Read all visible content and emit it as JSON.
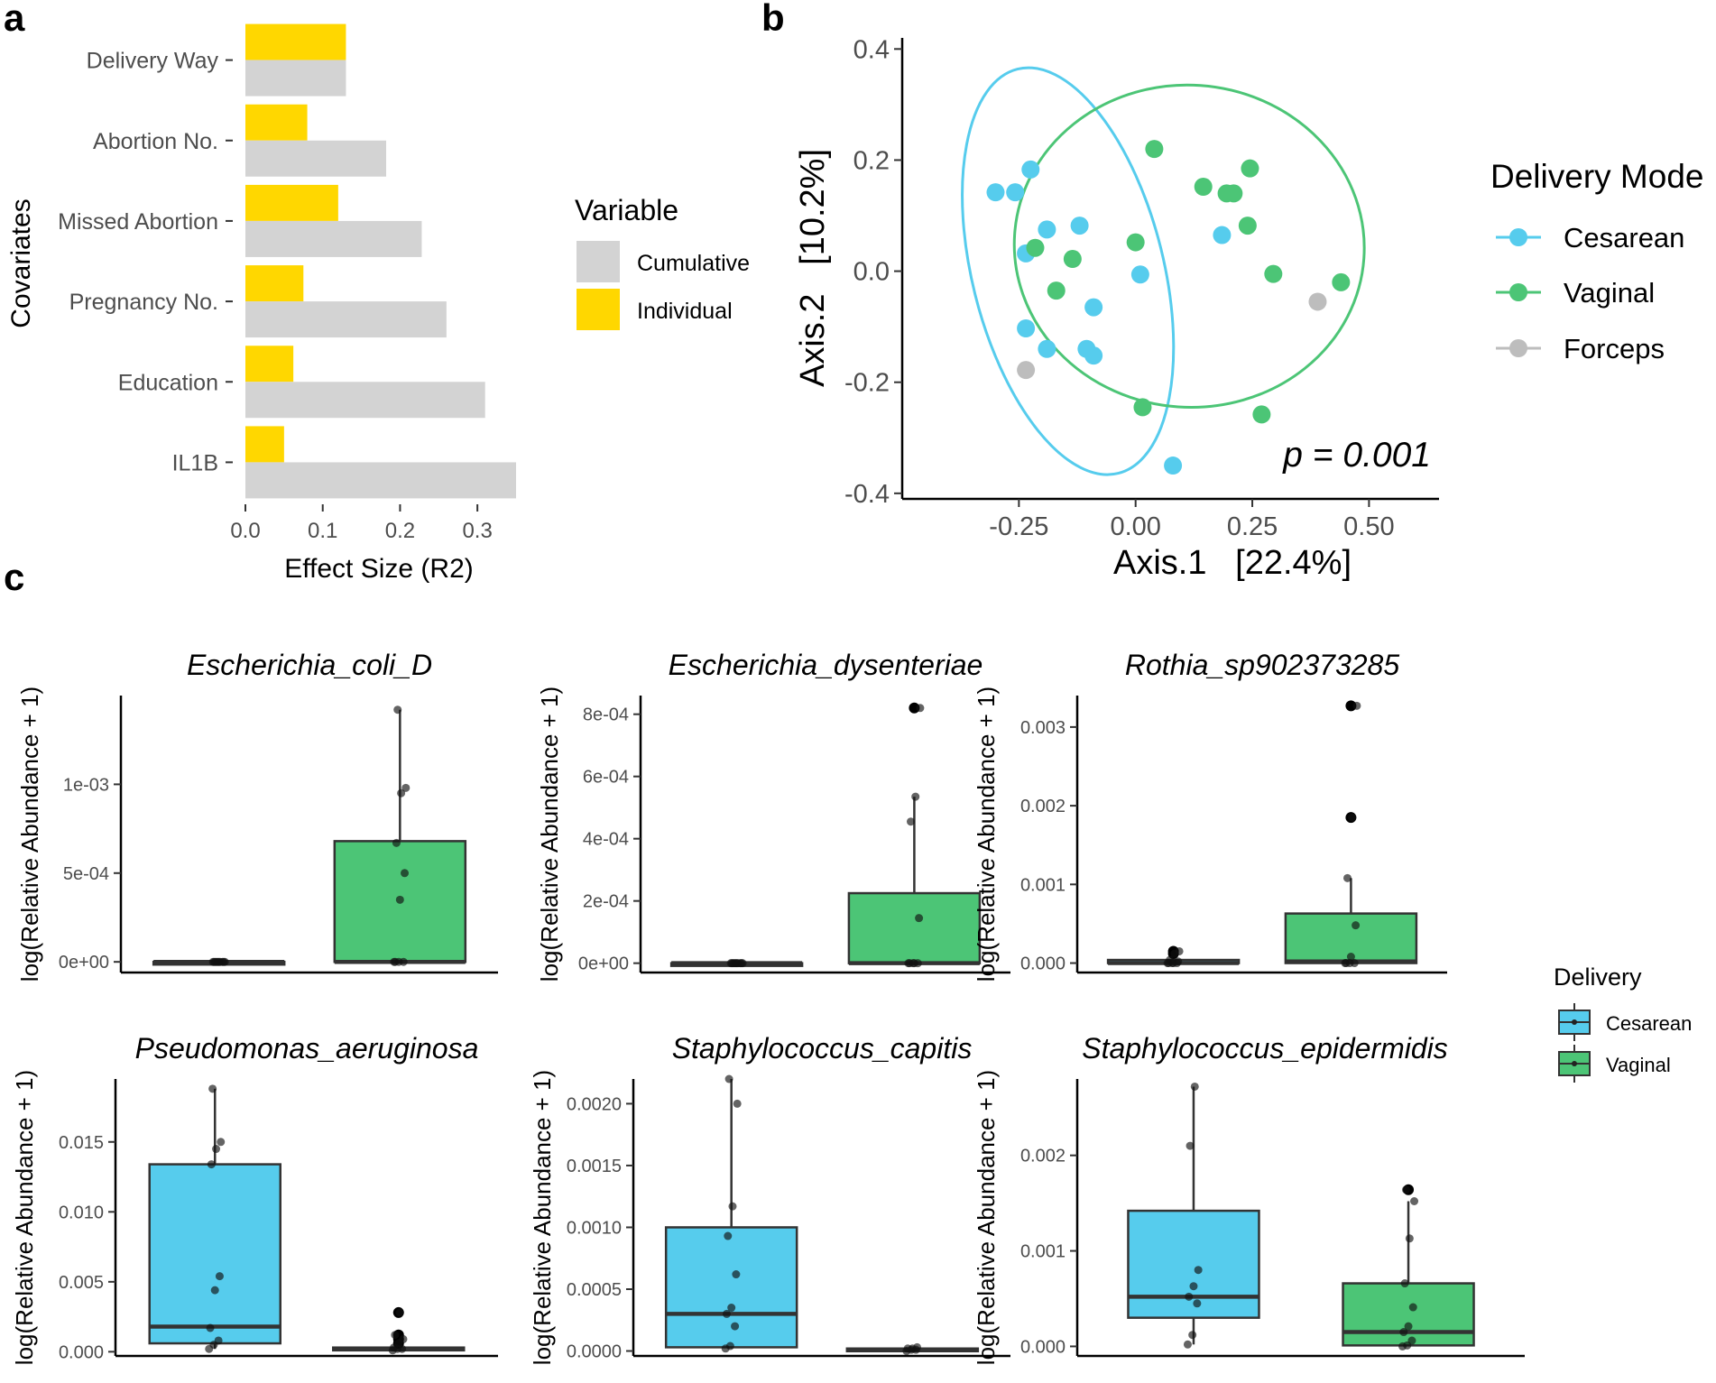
{
  "panel_labels": [
    "a",
    "b",
    "c"
  ],
  "colors": {
    "cesarean": "#56CCED",
    "vaginal": "#4CC576",
    "forceps": "#BDBDBD",
    "cumulative": "#D3D3D3",
    "individual": "#FFD700",
    "axis": "#000000",
    "tick_text": "#4D4D4D"
  },
  "chart_data": [
    {
      "id": "a",
      "type": "bar",
      "orientation": "horizontal",
      "categories": [
        "Delivery Way",
        "Abortion No.",
        "Missed Abortion",
        "Pregnancy No.",
        "Education",
        "IL1B"
      ],
      "series": [
        {
          "name": "Individual",
          "values": [
            0.13,
            0.08,
            0.12,
            0.075,
            0.062,
            0.05
          ]
        },
        {
          "name": "Cumulative",
          "values": [
            0.13,
            0.182,
            0.228,
            0.26,
            0.31,
            0.35
          ]
        }
      ],
      "xlabel": "Effect Size (R2)",
      "ylabel": "Covariates",
      "xlim": [
        0,
        0.35
      ],
      "xticks": [
        0.0,
        0.1,
        0.2,
        0.3
      ],
      "xtick_labels": [
        "0.0",
        "0.1",
        "0.2",
        "0.3"
      ],
      "legend": {
        "title": "Variable",
        "items": [
          "Cumulative",
          "Individual"
        ],
        "position": "right"
      }
    },
    {
      "id": "b",
      "type": "scatter",
      "xlabel": "Axis.1   [22.4%]",
      "ylabel": "Axis.2   [10.2%]",
      "xlim": [
        -0.5,
        0.65
      ],
      "ylim": [
        -0.41,
        0.42
      ],
      "xticks": [
        -0.25,
        0.0,
        0.25,
        0.5
      ],
      "xtick_labels": [
        "-0.25",
        "0.00",
        "0.25",
        "0.50"
      ],
      "yticks": [
        0.4,
        0.2,
        0.0,
        -0.2,
        -0.4
      ],
      "ytick_labels": [
        "0.4",
        "0.2",
        "0.0",
        "-0.2",
        "-0.4"
      ],
      "annotation": "p = 0.001",
      "legend": {
        "title": "Delivery Mode",
        "items": [
          "Cesarean",
          "Vaginal",
          "Forceps"
        ],
        "position": "right"
      },
      "series": [
        {
          "name": "Cesarean",
          "points": [
            [
              -0.3,
              0.142
            ],
            [
              -0.258,
              0.142
            ],
            [
              -0.225,
              0.183
            ],
            [
              -0.19,
              0.075
            ],
            [
              -0.12,
              0.082
            ],
            [
              -0.235,
              0.032
            ],
            [
              0.01,
              -0.006
            ],
            [
              -0.09,
              -0.065
            ],
            [
              -0.235,
              -0.103
            ],
            [
              -0.19,
              -0.14
            ],
            [
              -0.105,
              -0.14
            ],
            [
              -0.09,
              -0.152
            ],
            [
              0.08,
              -0.35
            ],
            [
              0.185,
              0.065
            ]
          ]
        },
        {
          "name": "Vaginal",
          "points": [
            [
              0.04,
              0.22
            ],
            [
              -0.215,
              0.042
            ],
            [
              -0.135,
              0.022
            ],
            [
              -0.17,
              -0.035
            ],
            [
              0.0,
              0.052
            ],
            [
              0.145,
              0.152
            ],
            [
              0.195,
              0.14
            ],
            [
              0.21,
              0.14
            ],
            [
              0.245,
              0.185
            ],
            [
              0.24,
              0.082
            ],
            [
              0.295,
              -0.005
            ],
            [
              0.44,
              -0.02
            ],
            [
              0.015,
              -0.245
            ],
            [
              0.27,
              -0.258
            ]
          ]
        },
        {
          "name": "Forceps",
          "points": [
            [
              -0.235,
              -0.178
            ],
            [
              0.39,
              -0.055
            ]
          ]
        }
      ],
      "ellipses": [
        {
          "group": "Cesarean",
          "center": [
            -0.145,
            0.0
          ],
          "radii": [
            0.205,
            0.375
          ],
          "rotation_deg": -14
        },
        {
          "group": "Vaginal",
          "center": [
            0.115,
            0.045
          ],
          "radii": [
            0.375,
            0.29
          ],
          "rotation_deg": 4
        }
      ]
    },
    {
      "id": "c",
      "type": "box",
      "ylabel": "log(Relative Abundance + 1)",
      "legend": {
        "title": "Delivery",
        "items": [
          "Cesarean",
          "Vaginal"
        ],
        "position": "right"
      },
      "panels": [
        {
          "title": "Escherichia_coli_D",
          "ylim": [
            -6e-05,
            0.0015
          ],
          "yticks": [
            0,
            0.0005,
            0.001
          ],
          "ytick_labels": [
            "0e+00",
            "5e-04",
            "1e-03"
          ],
          "boxes": [
            {
              "group": "Cesarean",
              "q1": 0,
              "median": 0,
              "q3": 0,
              "whisker_low": 0,
              "whisker_high": 0,
              "outliers": [],
              "points": [
                0,
                0,
                0,
                0,
                0,
                0,
                0,
                0,
                0,
                0
              ]
            },
            {
              "group": "Vaginal",
              "q1": 0,
              "median": 0,
              "q3": 0.00068,
              "whisker_low": 0,
              "whisker_high": 0.00142,
              "outliers": [],
              "points": [
                0,
                0,
                0,
                0,
                0.00035,
                0.0005,
                0.00067,
                0.00095,
                0.00098,
                0.00142
              ]
            }
          ]
        },
        {
          "title": "Escherichia_dysenteriae",
          "ylim": [
            -3e-05,
            0.00086
          ],
          "yticks": [
            0,
            0.0002,
            0.0004,
            0.0006,
            0.0008
          ],
          "ytick_labels": [
            "0e+00",
            "2e-04",
            "4e-04",
            "6e-04",
            "8e-04"
          ],
          "boxes": [
            {
              "group": "Cesarean",
              "q1": 0,
              "median": 0,
              "q3": 0,
              "whisker_low": 0,
              "whisker_high": 0,
              "outliers": [],
              "points": [
                0,
                0,
                0,
                0,
                0,
                0,
                0,
                0,
                0,
                0
              ]
            },
            {
              "group": "Vaginal",
              "q1": 0,
              "median": 0,
              "q3": 0.000225,
              "whisker_low": 0,
              "whisker_high": 0.000535,
              "outliers": [
                0.00082
              ],
              "points": [
                0,
                0,
                0,
                0,
                0,
                0.000145,
                0.000455,
                0.000535,
                0.00082
              ]
            }
          ]
        },
        {
          "title": "Rothia_sp902373285",
          "ylim": [
            -0.00012,
            0.0034
          ],
          "yticks": [
            0,
            0.001,
            0.002,
            0.003
          ],
          "ytick_labels": [
            "0.000",
            "0.001",
            "0.002",
            "0.003"
          ],
          "boxes": [
            {
              "group": "Cesarean",
              "q1": 0,
              "median": 0,
              "q3": 4e-05,
              "whisker_low": 0,
              "whisker_high": 4e-05,
              "outliers": [
                0.00012,
                0.00015
              ],
              "points": [
                0,
                0,
                0,
                0,
                0,
                2e-05,
                4e-05,
                0.00012,
                0.00015
              ]
            },
            {
              "group": "Vaginal",
              "q1": 0,
              "median": 2e-05,
              "q3": 0.00063,
              "whisker_low": 0,
              "whisker_high": 0.00108,
              "outliers": [
                0.00185,
                0.00327
              ],
              "points": [
                0,
                0,
                0,
                0,
                8e-05,
                0.00048,
                0.00108,
                0.00185,
                0.00327
              ]
            }
          ]
        },
        {
          "title": "Pseudomonas_aeruginosa",
          "ylim": [
            -0.0003,
            0.0195
          ],
          "yticks": [
            0,
            0.005,
            0.01,
            0.015
          ],
          "ytick_labels": [
            "0.000",
            "0.005",
            "0.010",
            "0.015"
          ],
          "boxes": [
            {
              "group": "Cesarean",
              "q1": 0.0006,
              "median": 0.0018,
              "q3": 0.0134,
              "whisker_low": 0.0002,
              "whisker_high": 0.0188,
              "outliers": [],
              "points": [
                0.0002,
                0.0005,
                0.0008,
                0.0017,
                0.0044,
                0.0054,
                0.0134,
                0.0145,
                0.015,
                0.0188
              ]
            },
            {
              "group": "Vaginal",
              "q1": 0.0001,
              "median": 0.0002,
              "q3": 0.0003,
              "whisker_low": 0.0001,
              "whisker_high": 0.0003,
              "outliers": [
                0.0006,
                0.0009,
                0.0012,
                0.0028
              ],
              "points": [
                0.0001,
                0.0002,
                0.0002,
                0.0003,
                0.0006,
                0.0009,
                0.0012,
                0.0028
              ]
            }
          ]
        },
        {
          "title": "Staphylococcus_capitis",
          "ylim": [
            -4e-05,
            0.0022
          ],
          "yticks": [
            0,
            0.0005,
            0.001,
            0.0015,
            0.002
          ],
          "ytick_labels": [
            "0.0000",
            "0.0005",
            "0.0010",
            "0.0015",
            "0.0020"
          ],
          "boxes": [
            {
              "group": "Cesarean",
              "q1": 3e-05,
              "median": 0.0003,
              "q3": 0.001,
              "whisker_low": 2e-05,
              "whisker_high": 0.0022,
              "outliers": [],
              "points": [
                2e-05,
                4e-05,
                0.0002,
                0.0003,
                0.00035,
                0.00062,
                0.00093,
                0.00117,
                0.002,
                0.0022
              ]
            },
            {
              "group": "Vaginal",
              "q1": 0,
              "median": 1e-05,
              "q3": 2e-05,
              "whisker_low": 0,
              "whisker_high": 3e-05,
              "outliers": [],
              "points": [
                0,
                1e-05,
                1e-05,
                2e-05,
                2e-05,
                3e-05
              ]
            }
          ]
        },
        {
          "title": "Staphylococcus_epidermidis",
          "ylim": [
            -0.0001,
            0.0028
          ],
          "yticks": [
            0,
            0.001,
            0.002
          ],
          "ytick_labels": [
            "0.000",
            "0.001",
            "0.002"
          ],
          "boxes": [
            {
              "group": "Cesarean",
              "q1": 0.0003,
              "median": 0.00052,
              "q3": 0.00142,
              "whisker_low": 2e-05,
              "whisker_high": 0.00272,
              "outliers": [],
              "points": [
                2e-05,
                0.00012,
                0.00045,
                0.00052,
                0.00063,
                0.0008,
                0.0021,
                0.00272
              ]
            },
            {
              "group": "Vaginal",
              "q1": 1e-05,
              "median": 0.00015,
              "q3": 0.00066,
              "whisker_low": 0,
              "whisker_high": 0.00152,
              "outliers": [
                0.00164
              ],
              "points": [
                0,
                1e-05,
                6e-05,
                0.00015,
                0.00021,
                0.00041,
                0.00066,
                0.00113,
                0.00152,
                0.00164
              ]
            }
          ]
        }
      ]
    }
  ]
}
